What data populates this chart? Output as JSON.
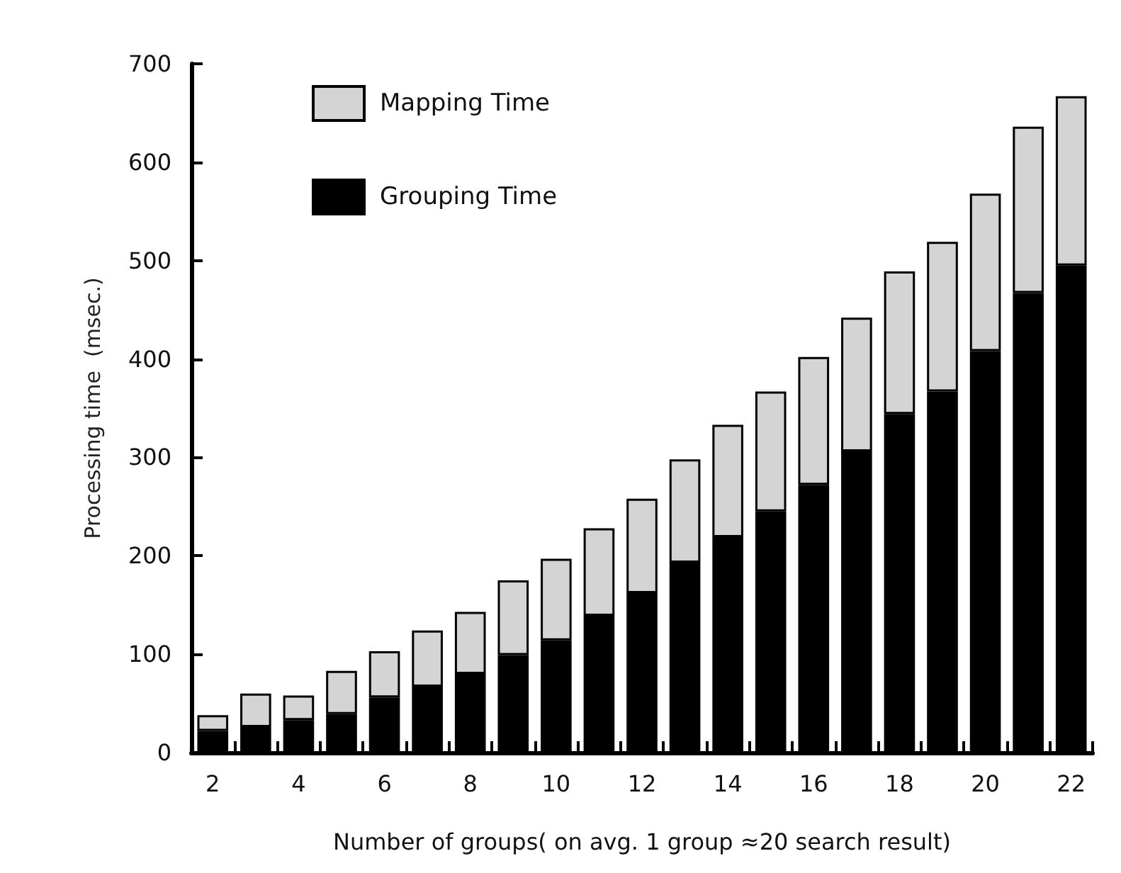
{
  "chart_data": {
    "type": "bar",
    "stacked": true,
    "xlabel": "Number of groups( on avg. 1 group ≈20 search result)",
    "ylabel": "Processing time  (msec.)",
    "categories": [
      "2",
      null,
      "4",
      null,
      "6",
      null,
      "8",
      null,
      "10",
      null,
      "12",
      null,
      "14",
      null,
      "16",
      null,
      "18",
      null,
      "20",
      null,
      "22"
    ],
    "series": [
      {
        "name": "Grouping Time",
        "color": "#000000",
        "values": [
          22,
          26,
          33,
          39,
          56,
          67,
          80,
          99,
          114,
          139,
          162,
          193,
          219,
          245,
          272,
          306,
          344,
          367,
          408,
          467,
          495
        ]
      },
      {
        "name": "Mapping Time",
        "color": "#d4d4d4",
        "values": [
          16,
          34,
          25,
          44,
          47,
          57,
          63,
          76,
          83,
          89,
          96,
          105,
          114,
          122,
          130,
          136,
          145,
          152,
          160,
          169,
          172
        ]
      }
    ],
    "ylim": [
      0,
      700
    ],
    "yticks": [
      0,
      100,
      200,
      300,
      400,
      500,
      600,
      700
    ],
    "grid": false,
    "legend": "top left"
  }
}
